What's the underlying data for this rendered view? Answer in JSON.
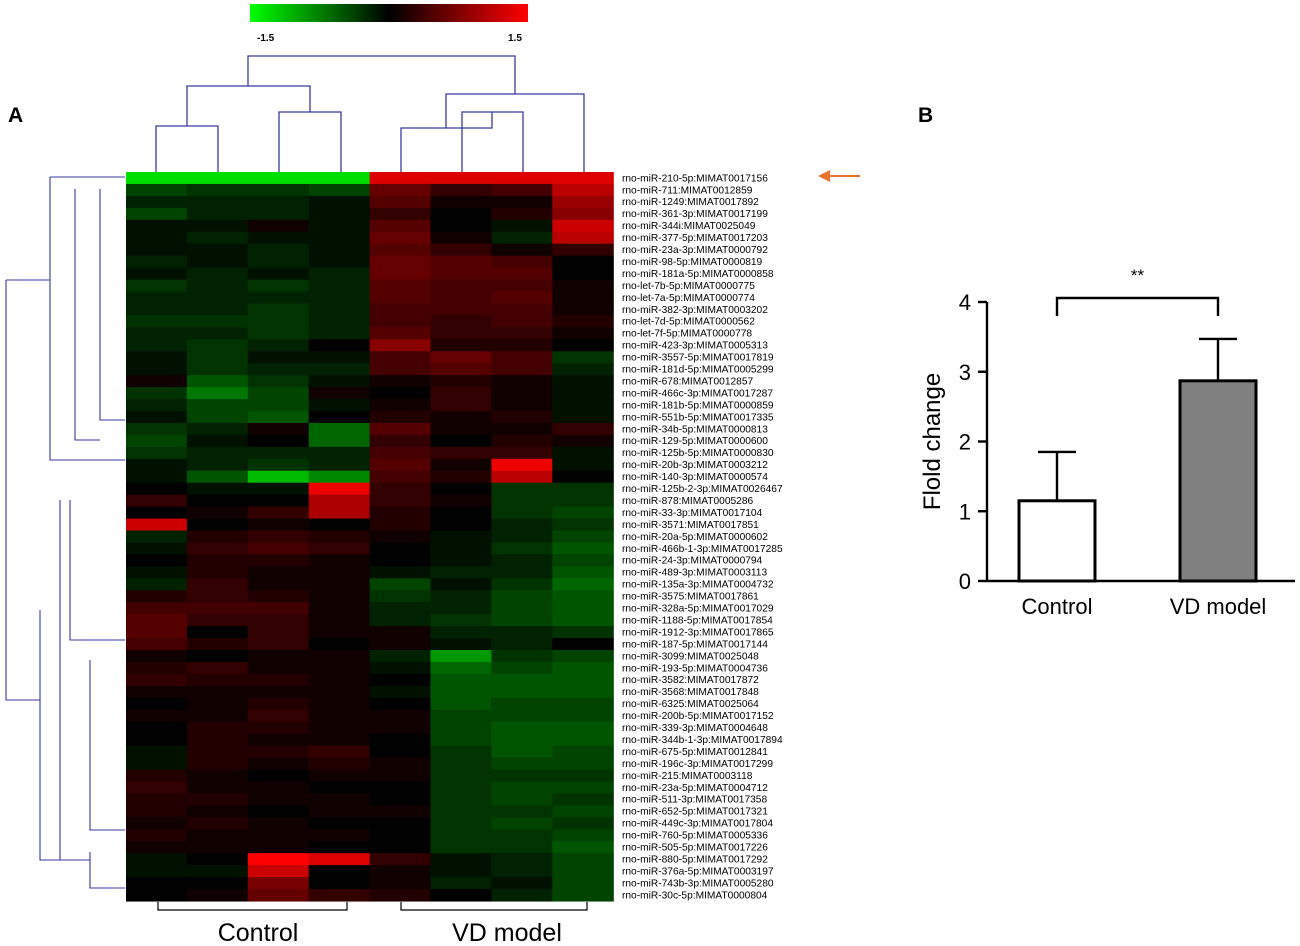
{
  "panels": {
    "a": "A",
    "b": "B"
  },
  "colors": {
    "low": "#00ff00",
    "mid": "#000000",
    "high": "#ff0000",
    "dendrogram": "#3a3aa0",
    "arrow": "#e8742a",
    "bar_vd": "#808080",
    "bar_control": "#ffffff"
  },
  "heatmap": {
    "scale_min_label": "-1.5",
    "scale_max_label": "1.5",
    "scale_min": -1.5,
    "scale_max": 1.5,
    "groups": [
      "Control",
      "VD model"
    ],
    "highlighted_row": 0,
    "rows": [
      {
        "label": "rno-miR-210-5p:MIMAT0017156",
        "values": [
          -1.3,
          -1.3,
          -1.3,
          -1.3,
          1.3,
          1.3,
          1.3,
          1.3
        ]
      },
      {
        "label": "rno-miR-711:MIMAT0012859",
        "values": [
          -0.4,
          -0.3,
          -0.3,
          -0.4,
          0.6,
          0.3,
          0.4,
          1.1
        ]
      },
      {
        "label": "rno-miR-1249:MIMAT0017892",
        "values": [
          -0.2,
          -0.2,
          -0.2,
          -0.1,
          0.5,
          0.1,
          0.1,
          0.9
        ]
      },
      {
        "label": "rno-miR-361-3p:MIMAT0017199",
        "values": [
          -0.4,
          -0.2,
          -0.2,
          -0.1,
          0.3,
          0.0,
          0.2,
          0.8
        ]
      },
      {
        "label": "rno-miR-344i:MIMAT0025049",
        "values": [
          -0.1,
          -0.1,
          0.1,
          -0.1,
          0.5,
          0.0,
          -0.1,
          1.2
        ]
      },
      {
        "label": "rno-miR-377-5p:MIMAT0017203",
        "values": [
          -0.1,
          -0.2,
          -0.1,
          -0.1,
          0.6,
          0.1,
          -0.2,
          1.1
        ]
      },
      {
        "label": "rno-miR-23a-3p:MIMAT0000792",
        "values": [
          -0.1,
          -0.1,
          -0.2,
          -0.1,
          0.5,
          0.3,
          0.1,
          0.3
        ]
      },
      {
        "label": "rno-miR-98-5p:MIMAT0000819",
        "values": [
          -0.2,
          -0.1,
          -0.2,
          -0.1,
          0.6,
          0.5,
          0.4,
          0.0
        ]
      },
      {
        "label": "rno-miR-181a-5p:MIMAT0000858",
        "values": [
          -0.1,
          -0.2,
          -0.1,
          -0.2,
          0.6,
          0.5,
          0.5,
          0.0
        ]
      },
      {
        "label": "rno-let-7b-5p:MIMAT0000775",
        "values": [
          -0.3,
          -0.2,
          -0.3,
          -0.2,
          0.5,
          0.4,
          0.4,
          0.1
        ]
      },
      {
        "label": "rno-let-7a-5p:MIMAT0000774",
        "values": [
          -0.2,
          -0.2,
          -0.2,
          -0.2,
          0.5,
          0.4,
          0.5,
          0.1
        ]
      },
      {
        "label": "rno-miR-382-3p:MIMAT0003202",
        "values": [
          -0.2,
          -0.2,
          -0.3,
          -0.2,
          0.4,
          0.4,
          0.4,
          0.1
        ]
      },
      {
        "label": "rno-let-7d-5p:MIMAT0000562",
        "values": [
          -0.3,
          -0.3,
          -0.3,
          -0.2,
          0.4,
          0.3,
          0.4,
          0.2
        ]
      },
      {
        "label": "rno-let-7f-5p:MIMAT0000778",
        "values": [
          -0.2,
          -0.2,
          -0.3,
          -0.2,
          0.5,
          0.3,
          0.3,
          0.1
        ]
      },
      {
        "label": "rno-miR-423-3p:MIMAT0005313",
        "values": [
          -0.2,
          -0.3,
          -0.2,
          0.0,
          0.8,
          0.2,
          0.2,
          0.0
        ]
      },
      {
        "label": "rno-miR-3557-5p:MIMAT0017819",
        "values": [
          -0.1,
          -0.3,
          -0.1,
          -0.1,
          0.4,
          0.6,
          0.4,
          -0.3
        ]
      },
      {
        "label": "rno-miR-181d-5p:MIMAT0005299",
        "values": [
          -0.1,
          -0.3,
          -0.2,
          -0.2,
          0.4,
          0.5,
          0.4,
          -0.2
        ]
      },
      {
        "label": "rno-miR-678:MIMAT0012857",
        "values": [
          0.1,
          -0.5,
          -0.3,
          -0.1,
          0.1,
          0.2,
          0.1,
          -0.1
        ]
      },
      {
        "label": "rno-miR-466c-3p:MIMAT0017287",
        "values": [
          -0.3,
          -0.7,
          -0.4,
          0.1,
          0.0,
          0.3,
          0.1,
          -0.1
        ]
      },
      {
        "label": "rno-miR-181b-5p:MIMAT0000859",
        "values": [
          -0.2,
          -0.4,
          -0.4,
          -0.1,
          0.1,
          0.3,
          0.1,
          -0.1
        ]
      },
      {
        "label": "rno-miR-551b-5p:MIMAT0017335",
        "values": [
          -0.1,
          -0.4,
          -0.5,
          0.0,
          0.2,
          0.1,
          0.2,
          -0.1
        ]
      },
      {
        "label": "rno-miR-34b-5p:MIMAT0000813",
        "values": [
          -0.3,
          -0.2,
          0.1,
          -0.6,
          0.5,
          0.1,
          0.1,
          0.3
        ]
      },
      {
        "label": "rno-miR-129-5p:MIMAT0000600",
        "values": [
          -0.4,
          -0.1,
          0.0,
          -0.6,
          0.3,
          0.0,
          0.2,
          0.1
        ]
      },
      {
        "label": "rno-miR-125b-5p:MIMAT0000830",
        "values": [
          -0.3,
          -0.2,
          -0.2,
          -0.2,
          0.4,
          0.3,
          0.3,
          -0.1
        ]
      },
      {
        "label": "rno-miR-20b-3p:MIMAT0003212",
        "values": [
          -0.1,
          -0.2,
          -0.3,
          -0.2,
          0.5,
          0.1,
          1.4,
          -0.1
        ]
      },
      {
        "label": "rno-miR-140-3p:MIMAT0000574",
        "values": [
          -0.1,
          -0.5,
          -1.1,
          -0.8,
          0.4,
          0.2,
          1.1,
          0.0
        ]
      },
      {
        "label": "rno-miR-125b-2-3p:MIMAT0026467",
        "values": [
          0.0,
          -0.1,
          -0.1,
          1.4,
          0.3,
          0.0,
          -0.3,
          -0.3
        ]
      },
      {
        "label": "rno-miR-878:MIMAT0005286",
        "values": [
          0.3,
          0.0,
          0.0,
          1.0,
          0.3,
          0.1,
          -0.3,
          -0.3
        ]
      },
      {
        "label": "rno-miR-33-3p:MIMAT0017104",
        "values": [
          0.0,
          0.1,
          0.3,
          1.0,
          0.2,
          0.0,
          -0.3,
          -0.4
        ]
      },
      {
        "label": "rno-miR-3571:MIMAT0017851",
        "values": [
          1.2,
          0.0,
          0.1,
          0.0,
          0.2,
          0.0,
          -0.2,
          -0.3
        ]
      },
      {
        "label": "rno-miR-20a-5p:MIMAT0000602",
        "values": [
          -0.2,
          0.2,
          0.3,
          0.2,
          0.1,
          -0.1,
          -0.2,
          -0.4
        ]
      },
      {
        "label": "rno-miR-466b-1-3p:MIMAT0017285",
        "values": [
          -0.1,
          0.3,
          0.4,
          0.3,
          0.0,
          -0.1,
          -0.3,
          -0.5
        ]
      },
      {
        "label": "rno-miR-24-3p:MIMAT0000794",
        "values": [
          0.0,
          0.2,
          0.2,
          0.1,
          0.0,
          -0.1,
          -0.2,
          -0.4
        ]
      },
      {
        "label": "rno-miR-489-3p:MIMAT0003113",
        "values": [
          -0.1,
          0.2,
          0.1,
          0.1,
          -0.1,
          -0.2,
          -0.2,
          -0.5
        ]
      },
      {
        "label": "rno-miR-135a-3p:MIMAT0004732",
        "values": [
          -0.2,
          0.3,
          0.1,
          0.1,
          -0.4,
          -0.1,
          -0.3,
          -0.6
        ]
      },
      {
        "label": "rno-miR-3575:MIMAT0017861",
        "values": [
          0.2,
          0.3,
          0.2,
          0.1,
          -0.3,
          -0.2,
          -0.4,
          -0.5
        ]
      },
      {
        "label": "rno-miR-328a-5p:MIMAT0017029",
        "values": [
          0.4,
          0.4,
          0.4,
          0.1,
          -0.2,
          -0.2,
          -0.4,
          -0.5
        ]
      },
      {
        "label": "rno-miR-1188-5p:MIMAT0017854",
        "values": [
          0.5,
          0.3,
          0.3,
          0.1,
          -0.2,
          -0.3,
          -0.4,
          -0.5
        ]
      },
      {
        "label": "rno-miR-1912-3p:MIMAT0017865",
        "values": [
          0.5,
          0.0,
          0.3,
          0.1,
          0.1,
          -0.2,
          -0.2,
          -0.3
        ]
      },
      {
        "label": "rno-miR-187-5p:MIMAT0017144",
        "values": [
          0.4,
          0.2,
          0.3,
          0.0,
          0.1,
          -0.1,
          -0.2,
          0.0
        ]
      },
      {
        "label": "rno-miR-3099:MIMAT0025048",
        "values": [
          0.1,
          0.0,
          0.1,
          0.1,
          -0.2,
          -0.9,
          -0.3,
          -0.4
        ]
      },
      {
        "label": "rno-miR-193-5p:MIMAT0004736",
        "values": [
          0.2,
          0.3,
          0.1,
          0.1,
          -0.1,
          -0.6,
          -0.4,
          -0.5
        ]
      },
      {
        "label": "rno-miR-3582:MIMAT0017872",
        "values": [
          0.3,
          0.2,
          0.2,
          0.1,
          0.0,
          -0.5,
          -0.5,
          -0.5
        ]
      },
      {
        "label": "rno-miR-3568:MIMAT0017848",
        "values": [
          0.1,
          0.1,
          0.1,
          0.1,
          -0.1,
          -0.5,
          -0.5,
          -0.5
        ]
      },
      {
        "label": "rno-miR-6325:MIMAT0025064",
        "values": [
          0.0,
          0.1,
          0.2,
          0.1,
          0.0,
          -0.5,
          -0.4,
          -0.4
        ]
      },
      {
        "label": "rno-miR-200b-5p:MIMAT0017152",
        "values": [
          0.1,
          0.1,
          0.3,
          0.1,
          0.1,
          -0.4,
          -0.4,
          -0.4
        ]
      },
      {
        "label": "rno-miR-339-3p:MIMAT0004648",
        "values": [
          0.0,
          0.2,
          0.2,
          0.1,
          0.1,
          -0.4,
          -0.5,
          -0.5
        ]
      },
      {
        "label": "rno-miR-344b-1-3p:MIMAT0017894",
        "values": [
          0.0,
          0.2,
          0.1,
          0.1,
          0.0,
          -0.4,
          -0.5,
          -0.5
        ]
      },
      {
        "label": "rno-miR-675-5p:MIMAT0012841",
        "values": [
          -0.1,
          0.2,
          0.2,
          0.3,
          0.0,
          -0.3,
          -0.5,
          -0.4
        ]
      },
      {
        "label": "rno-miR-196c-3p:MIMAT0017299",
        "values": [
          -0.1,
          0.2,
          0.1,
          0.2,
          0.1,
          -0.3,
          -0.4,
          -0.4
        ]
      },
      {
        "label": "rno-miR-215:MIMAT0003118",
        "values": [
          0.2,
          0.1,
          0.0,
          0.1,
          0.1,
          -0.3,
          -0.3,
          -0.3
        ]
      },
      {
        "label": "rno-miR-23a-5p:MIMAT0004712",
        "values": [
          0.3,
          0.1,
          0.1,
          0.0,
          0.0,
          -0.3,
          -0.4,
          -0.4
        ]
      },
      {
        "label": "rno-miR-511-3p:MIMAT0017358",
        "values": [
          0.2,
          0.2,
          0.1,
          0.1,
          0.0,
          -0.3,
          -0.4,
          -0.3
        ]
      },
      {
        "label": "rno-miR-652-5p:MIMAT0017321",
        "values": [
          0.2,
          0.1,
          0.0,
          0.1,
          0.1,
          -0.3,
          -0.3,
          -0.4
        ]
      },
      {
        "label": "rno-miR-449c-3p:MIMAT0017804",
        "values": [
          0.1,
          0.2,
          0.1,
          0.0,
          0.0,
          -0.3,
          -0.4,
          -0.3
        ]
      },
      {
        "label": "rno-miR-760-5p:MIMAT0005336",
        "values": [
          0.2,
          0.1,
          0.1,
          0.1,
          0.0,
          -0.3,
          -0.3,
          -0.4
        ]
      },
      {
        "label": "rno-miR-505-5p:MIMAT0017226",
        "values": [
          0.1,
          0.1,
          0.1,
          0.0,
          0.0,
          -0.3,
          -0.3,
          -0.5
        ]
      },
      {
        "label": "rno-miR-880-5p:MIMAT0017292",
        "values": [
          -0.1,
          0.0,
          1.5,
          1.3,
          0.3,
          -0.1,
          -0.2,
          -0.4
        ]
      },
      {
        "label": "rno-miR-376a-5p:MIMAT0003197",
        "values": [
          -0.1,
          -0.1,
          1.2,
          0.0,
          0.1,
          -0.1,
          -0.2,
          -0.4
        ]
      },
      {
        "label": "rno-miR-743b-3p:MIMAT0005280",
        "values": [
          0.0,
          0.0,
          0.7,
          0.0,
          0.1,
          -0.2,
          -0.1,
          -0.4
        ]
      },
      {
        "label": "rno-miR-30c-5p:MIMAT0000804",
        "values": [
          0.0,
          0.1,
          0.6,
          0.3,
          0.2,
          0.0,
          -0.2,
          -0.4
        ]
      }
    ]
  },
  "chart_data": [
    {
      "type": "heatmap",
      "title": "",
      "x_groups": [
        "Control",
        "VD model"
      ],
      "color_scale": {
        "min": -1.5,
        "max": 1.5,
        "colors": [
          "#00ff00",
          "#000000",
          "#ff0000"
        ]
      },
      "note": "row values are the heatmap matrix stored under heatmap.rows"
    },
    {
      "type": "bar",
      "categories": [
        "Control",
        "VD model"
      ],
      "values": [
        1.15,
        2.87
      ],
      "errors": [
        0.7,
        0.6
      ],
      "ylabel": "Flold change",
      "xlabel": "",
      "ylim": [
        0,
        4
      ],
      "yticks": [
        "0",
        "1",
        "2",
        "3",
        "4"
      ],
      "significance": "**",
      "grid": false
    }
  ]
}
